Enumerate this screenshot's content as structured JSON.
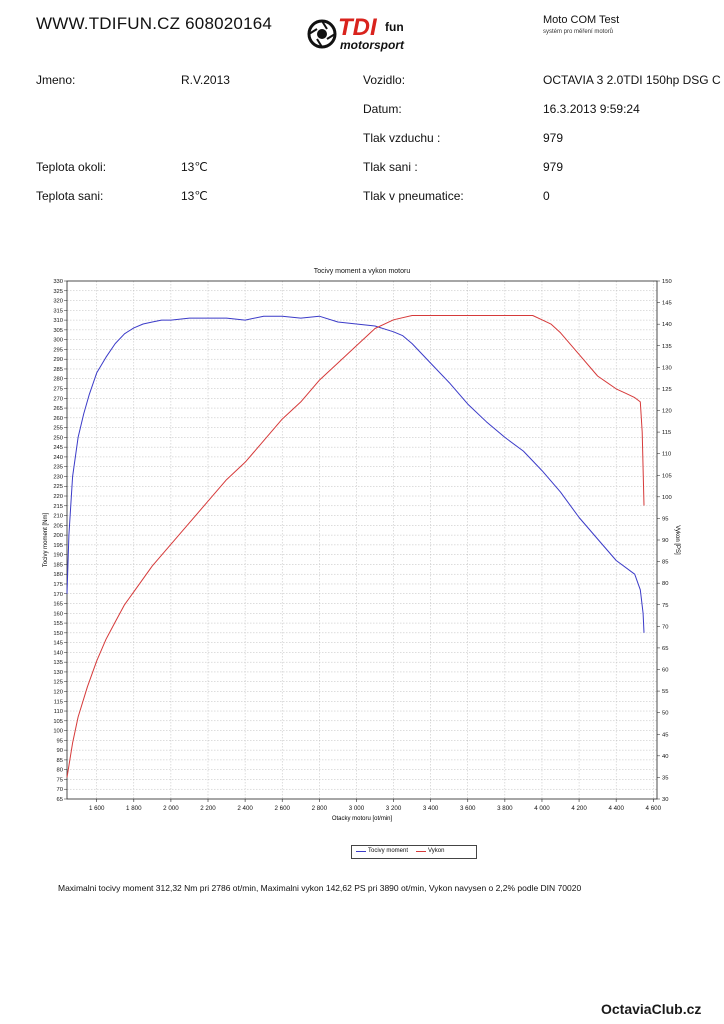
{
  "header": {
    "site": "WWW.TDIFUN.CZ 608020164",
    "logo_main": "TDI",
    "logo_sup": "fun",
    "logo_sub": "motorsport",
    "motocom_title": "Moto COM Test",
    "motocom_sub": "systém pro měření motorů"
  },
  "info": {
    "jmeno_label": "Jmeno:",
    "jmeno_value": "R.V.2013",
    "vozidlo_label": "Vozidlo:",
    "vozidlo_value": "OCTAVIA 3 2.0TDI 150hp DSG C",
    "datum_label": "Datum:",
    "datum_value": "16.3.2013 9:59:24",
    "tlak_vzduchu_label": "Tlak vzduchu :",
    "tlak_vzduchu_value": "979",
    "teplota_okoli_label": "Teplota okoli:",
    "teplota_okoli_value": "13℃",
    "tlak_sani_label": "Tlak sani :",
    "tlak_sani_value": "979",
    "teplota_sani_label": "Teplota sani:",
    "teplota_sani_value": "13℃",
    "tlak_pneu_label": "Tlak v pneumatice:",
    "tlak_pneu_value": "0"
  },
  "chart_data": {
    "type": "line",
    "title": "Tocivy moment a vykon motoru",
    "xlabel": "Otacky motoru [ot/min]",
    "ylabel": "Tocivy moment [Nm]",
    "y2label": "Vykon [PS]",
    "xlim": [
      1440,
      4620
    ],
    "ylim": [
      65,
      330
    ],
    "y2lim": [
      30,
      150
    ],
    "x_ticks": [
      1600,
      1800,
      2000,
      2200,
      2400,
      2600,
      2800,
      3000,
      3200,
      3400,
      3600,
      3800,
      4000,
      4200,
      4400,
      4600
    ],
    "x_tick_labels": [
      "1 600",
      "1 800",
      "2 000",
      "2 200",
      "2 400",
      "2 600",
      "2 800",
      "3 000",
      "3 200",
      "3 400",
      "3 600",
      "3 800",
      "4 000",
      "4 200",
      "4 400",
      "4 600"
    ],
    "y_ticks": [
      65,
      70,
      75,
      80,
      85,
      90,
      95,
      100,
      105,
      110,
      115,
      120,
      125,
      130,
      135,
      140,
      145,
      150,
      155,
      160,
      165,
      170,
      175,
      180,
      185,
      190,
      195,
      200,
      205,
      210,
      215,
      220,
      225,
      230,
      235,
      240,
      245,
      250,
      255,
      260,
      265,
      270,
      275,
      280,
      285,
      290,
      295,
      300,
      305,
      310,
      315,
      320,
      325,
      330
    ],
    "y2_ticks": [
      30,
      35,
      40,
      45,
      50,
      55,
      60,
      65,
      70,
      75,
      80,
      85,
      90,
      95,
      100,
      105,
      110,
      115,
      120,
      125,
      130,
      135,
      140,
      145,
      150
    ],
    "grid": true,
    "legend": "bottom-center",
    "series": [
      {
        "name": "Tocivy moment",
        "axis": "left",
        "color": "#3b3bc8",
        "x": [
          1440,
          1450,
          1470,
          1500,
          1530,
          1560,
          1600,
          1650,
          1700,
          1750,
          1800,
          1850,
          1900,
          1950,
          2000,
          2100,
          2200,
          2300,
          2400,
          2500,
          2550,
          2600,
          2700,
          2800,
          2900,
          3000,
          3100,
          3200,
          3250,
          3300,
          3400,
          3500,
          3600,
          3700,
          3800,
          3900,
          4000,
          4100,
          4200,
          4300,
          4400,
          4500,
          4530,
          4545,
          4550
        ],
        "y": [
          170,
          200,
          230,
          250,
          262,
          272,
          283,
          291,
          298,
          303,
          306,
          308,
          309,
          310,
          310,
          311,
          311,
          311,
          310,
          312,
          312,
          312,
          311,
          312,
          309,
          308,
          307,
          304,
          302,
          298,
          288,
          278,
          267,
          258,
          250,
          243,
          233,
          222,
          209,
          198,
          187,
          180,
          172,
          160,
          150
        ]
      },
      {
        "name": "Vykon",
        "axis": "right",
        "color": "#d63a3a",
        "x": [
          1440,
          1470,
          1500,
          1550,
          1600,
          1650,
          1700,
          1750,
          1800,
          1900,
          2000,
          2100,
          2200,
          2300,
          2400,
          2500,
          2600,
          2700,
          2800,
          2900,
          3000,
          3100,
          3200,
          3300,
          3400,
          3500,
          3600,
          3700,
          3800,
          3900,
          3950,
          4000,
          4050,
          4100,
          4200,
          4300,
          4400,
          4450,
          4500,
          4530,
          4540,
          4550
        ],
        "y": [
          35,
          43,
          49,
          56,
          62,
          67,
          71,
          75,
          78,
          84,
          89,
          94,
          99,
          104,
          108,
          113,
          118,
          122,
          127,
          131,
          135,
          139,
          141,
          142,
          142,
          142,
          142,
          142,
          142,
          142,
          142,
          141,
          140,
          138,
          133,
          128,
          125,
          124,
          123,
          122,
          115,
          98
        ]
      }
    ]
  },
  "summary": "Maximalni tocivy moment 312,32 Nm pri 2786 ot/min,  Maximalni vykon 142,62 PS pri 3890 ot/min,  Vykon navysen o 2,2% podle DIN 70020",
  "footer": {
    "brand": "OctaviaClub.cz"
  }
}
